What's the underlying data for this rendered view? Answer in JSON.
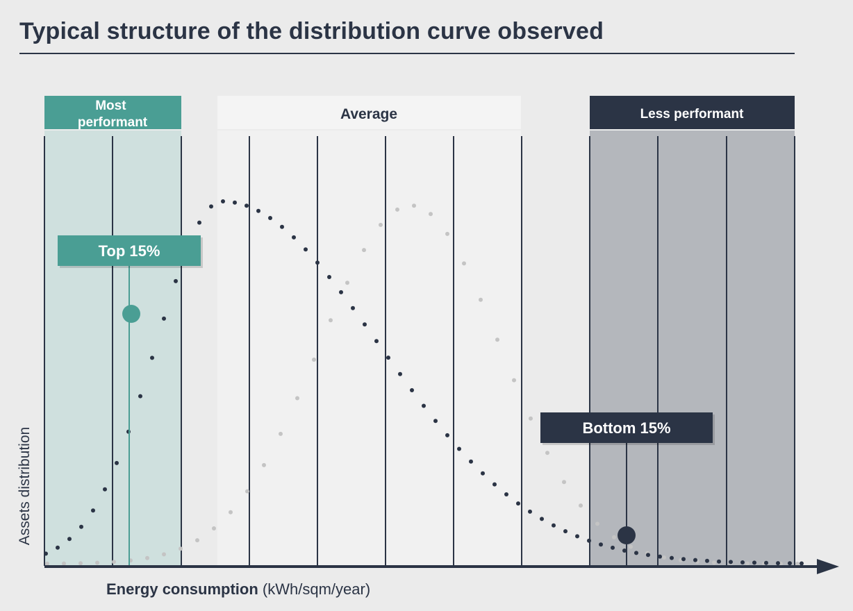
{
  "title": "Typical structure of the distribution curve observed",
  "zones": {
    "most": "Most\nperformant",
    "average": "Average",
    "less": "Less performant"
  },
  "callouts": {
    "top": "Top 15%",
    "bottom": "Bottom 15%"
  },
  "axes": {
    "x_label_bold": "Energy consumption",
    "x_label_unit": "(kWh/sqm/year)",
    "y_label": "Assets distribution"
  },
  "colors": {
    "teal": "#4a9e94",
    "navy": "#2b3445",
    "gray_dots": "#c4c4c4"
  }
}
